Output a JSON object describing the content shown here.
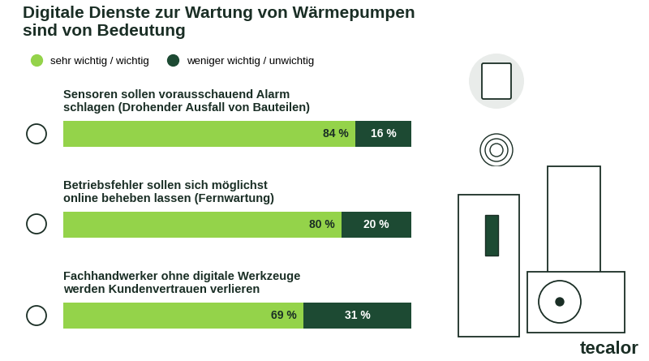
{
  "chart_data": {
    "type": "bar",
    "orientation": "horizontal",
    "stacked": true,
    "title": "Digitale Dienste zur Wartung von Wärmepumpen\nsind von Bedeutung",
    "categories": [
      "Sensoren sollen vorausschauend Alarm\nschlagen (Drohender Ausfall von Bauteilen)",
      "Betriebsfehler sollen sich möglichst\nonline beheben lassen (Fernwartung)",
      "Fachhandwerker ohne digitale Werkzeuge\nwerden Kundenvertrauen verlieren"
    ],
    "series": [
      {
        "name": "sehr wichtig / wichtig",
        "color": "#94d34a",
        "values": [
          84,
          80,
          69
        ],
        "value_labels": [
          "84 %",
          "80 %",
          "69 %"
        ]
      },
      {
        "name": "weniger wichtig / unwichtig",
        "color": "#1d4a33",
        "values": [
          16,
          20,
          31
        ],
        "value_labels": [
          "16 %",
          "20 %",
          "31 %"
        ]
      }
    ],
    "xlim": [
      0,
      100
    ],
    "tick_labels": false,
    "legend": "upper left",
    "data_labels": true,
    "source": "tecalor"
  }
}
